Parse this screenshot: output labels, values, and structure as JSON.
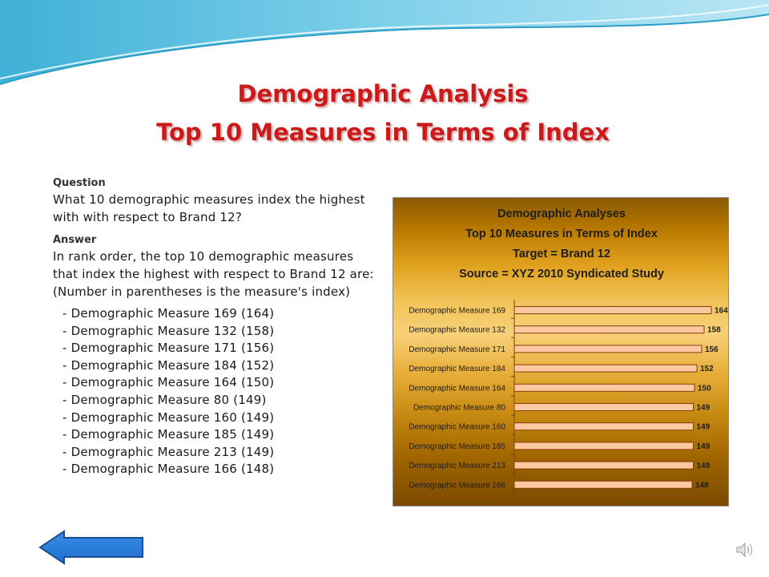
{
  "slide": {
    "title_line1": "Demographic Analysis",
    "title_line2": "Top 10 Measures in Terms of Index"
  },
  "question": {
    "heading": "Question",
    "text": "What 10 demographic measures index the highest with with respect to Brand 12?"
  },
  "answer": {
    "heading": "Answer",
    "line1": "In rank order, the top 10 demographic measures",
    "line2": "that index the highest with respect to Brand 12 are:",
    "line3": "(Number in parentheses is the measure's index)",
    "items": [
      "- Demographic Measure 169 (164)",
      "- Demographic Measure 132 (158)",
      "- Demographic Measure 171 (156)",
      "- Demographic Measure 184 (152)",
      "- Demographic Measure 164 (150)",
      "- Demographic Measure 80 (149)",
      "- Demographic Measure 160 (149)",
      "- Demographic Measure 185 (149)",
      "- Demographic Measure 213 (149)",
      "- Demographic Measure 166 (148)"
    ]
  },
  "chart_data": {
    "type": "bar",
    "orientation": "horizontal",
    "title_lines": [
      "Demographic Analyses",
      "Top 10 Measures in Terms of Index",
      "Target =  Brand 12",
      "Source = XYZ 2010 Syndicated Study"
    ],
    "categories": [
      "Demographic Measure 169",
      "Demographic Measure 132",
      "Demographic Measure 171",
      "Demographic Measure 184",
      "Demographic Measure 164",
      "Demographic Measure 80",
      "Demographic Measure 160",
      "Demographic Measure 185",
      "Demographic Measure 213",
      "Demographic Measure 166"
    ],
    "values": [
      164,
      158,
      156,
      152,
      150,
      149,
      149,
      149,
      149,
      148
    ],
    "xlim": [
      0,
      164
    ],
    "data_labels": true,
    "grid": false,
    "legend": "none",
    "colors": {
      "bar_fill": "#fbc8a0",
      "bar_stroke": "#8a3b0a",
      "background_mid": "#f7d078"
    }
  },
  "icons": {
    "back": "back-arrow-icon",
    "sound": "speaker-icon"
  }
}
